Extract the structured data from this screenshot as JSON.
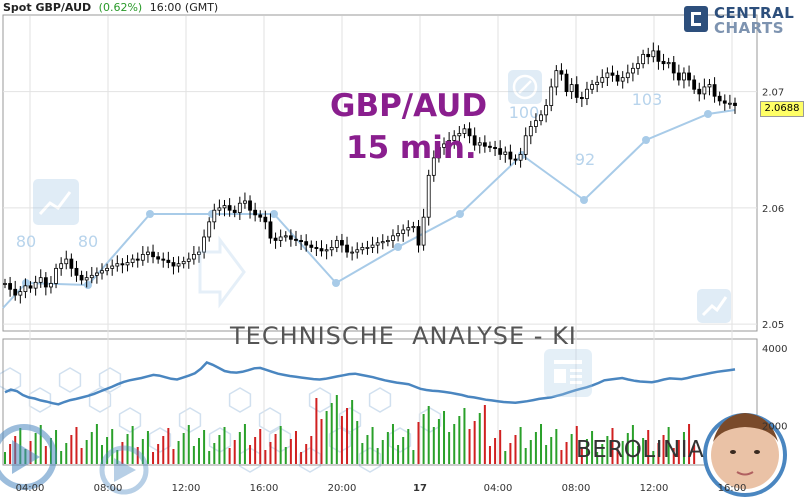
{
  "header": {
    "symbol": "Spot GBP/AUD",
    "change": "(0.62%)",
    "time": "16:00 (GMT)"
  },
  "logo": {
    "line1": "CENTRAL",
    "line2": "CHARTS"
  },
  "overlay": {
    "title_line1": "GBP/AUD",
    "title_line2": "15 min.",
    "analysis_label": "TECHNISCHE  ANALYSE - KI",
    "brand": "BEROLINIA"
  },
  "colors": {
    "up": "#2aa02a",
    "down": "#d02020",
    "candle_body": "#000000",
    "volume_line": "#4a86c0",
    "ai_line": "#a8cbe8",
    "title": "#8a1e8e",
    "price_box": "#ffff66"
  },
  "chart_data": {
    "type": "candlestick",
    "x_tick_labels": [
      "04:00",
      "08:00",
      "12:00",
      "16:00",
      "20:00",
      "17",
      "04:00",
      "08:00",
      "12:00",
      "16:00"
    ],
    "y_tick_labels": [
      "2.07",
      "2.06",
      "2.05"
    ],
    "ylim": [
      2.0495,
      2.0765
    ],
    "last_price": "2.0688",
    "price_series": [
      2.0535,
      2.053,
      2.0525,
      2.0528,
      2.0533,
      2.0531,
      2.0536,
      2.054,
      2.0532,
      2.0535,
      2.0548,
      2.0552,
      2.0556,
      2.0548,
      2.0542,
      2.0538,
      2.054,
      2.0542,
      2.0544,
      2.0546,
      2.0548,
      2.055,
      2.0552,
      2.0551,
      2.0553,
      2.0556,
      2.0555,
      2.056,
      2.0562,
      2.0558,
      2.0556,
      2.0555,
      2.0553,
      2.055,
      2.0552,
      2.0554,
      2.0556,
      2.056,
      2.0562,
      2.0575,
      2.0588,
      2.0598,
      2.06,
      2.0602,
      2.0598,
      2.0596,
      2.0604,
      2.0606,
      2.0598,
      2.0594,
      2.0592,
      2.0588,
      2.0574,
      2.0572,
      2.0575,
      2.0576,
      2.0573,
      2.0572,
      2.0571,
      2.0568,
      2.0566,
      2.0565,
      2.0563,
      2.0564,
      2.0566,
      2.0572,
      2.0568,
      2.0562,
      2.0562,
      2.0564,
      2.0566,
      2.0566,
      2.0568,
      2.057,
      2.0571,
      2.0572,
      2.0576,
      2.0578,
      2.0581,
      2.0583,
      2.0584,
      2.0568,
      2.0592,
      2.0628,
      2.0643,
      2.0652,
      2.0655,
      2.0658,
      2.0662,
      2.0664,
      2.0668,
      2.0662,
      2.0654,
      2.0656,
      2.0653,
      2.0652,
      2.0651,
      2.0646,
      2.0648,
      2.0642,
      2.0641,
      2.0646,
      2.0662,
      2.067,
      2.0675,
      2.068,
      2.0688,
      2.0704,
      2.0718,
      2.0715,
      2.07,
      2.0706,
      2.0695,
      2.0694,
      2.0702,
      2.0706,
      2.0708,
      2.0712,
      2.0716,
      2.0714,
      2.0709,
      2.0712,
      2.0716,
      2.072,
      2.0724,
      2.0732,
      2.073,
      2.0735,
      2.0726,
      2.0724,
      2.0725,
      2.0716,
      2.071,
      2.0716,
      2.071,
      2.0702,
      2.0698,
      2.0704,
      2.0706,
      2.0696,
      2.0692,
      2.069,
      2.069,
      2.0688
    ],
    "ai_forecast": [
      {
        "x": "",
        "value": 80
      },
      {
        "x": "",
        "value": 80
      },
      {
        "x": "",
        "value": 100
      },
      {
        "x": "",
        "value": 92
      },
      {
        "x": "",
        "value": 103
      }
    ],
    "volume_axis_labels": [
      "4000",
      "2000"
    ],
    "volume_line": [
      2850,
      2920,
      2880,
      2780,
      2720,
      2690,
      2640,
      2610,
      2570,
      2540,
      2600,
      2650,
      2680,
      2720,
      2760,
      2810,
      2870,
      2930,
      2990,
      3060,
      3120,
      3160,
      3190,
      3220,
      3260,
      3300,
      3280,
      3240,
      3200,
      3180,
      3230,
      3280,
      3340,
      3460,
      3620,
      3560,
      3480,
      3400,
      3370,
      3360,
      3380,
      3420,
      3470,
      3480,
      3430,
      3380,
      3330,
      3300,
      3270,
      3250,
      3230,
      3210,
      3190,
      3180,
      3200,
      3230,
      3260,
      3290,
      3320,
      3330,
      3300,
      3270,
      3240,
      3200,
      3160,
      3130,
      3100,
      3080,
      3060,
      3000,
      2940,
      2910,
      2890,
      2880,
      2860,
      2840,
      2810,
      2780,
      2740,
      2720,
      2690,
      2660,
      2640,
      2620,
      2600,
      2590,
      2580,
      2600,
      2620,
      2650,
      2680,
      2700,
      2720,
      2760,
      2800,
      2850,
      2900,
      2940,
      2980,
      3030,
      3090,
      3160,
      3180,
      3200,
      3220,
      3180,
      3150,
      3130,
      3120,
      3110,
      3140,
      3180,
      3210,
      3200,
      3190,
      3220,
      3260,
      3290,
      3320,
      3350,
      3380,
      3400,
      3420,
      3440
    ]
  }
}
